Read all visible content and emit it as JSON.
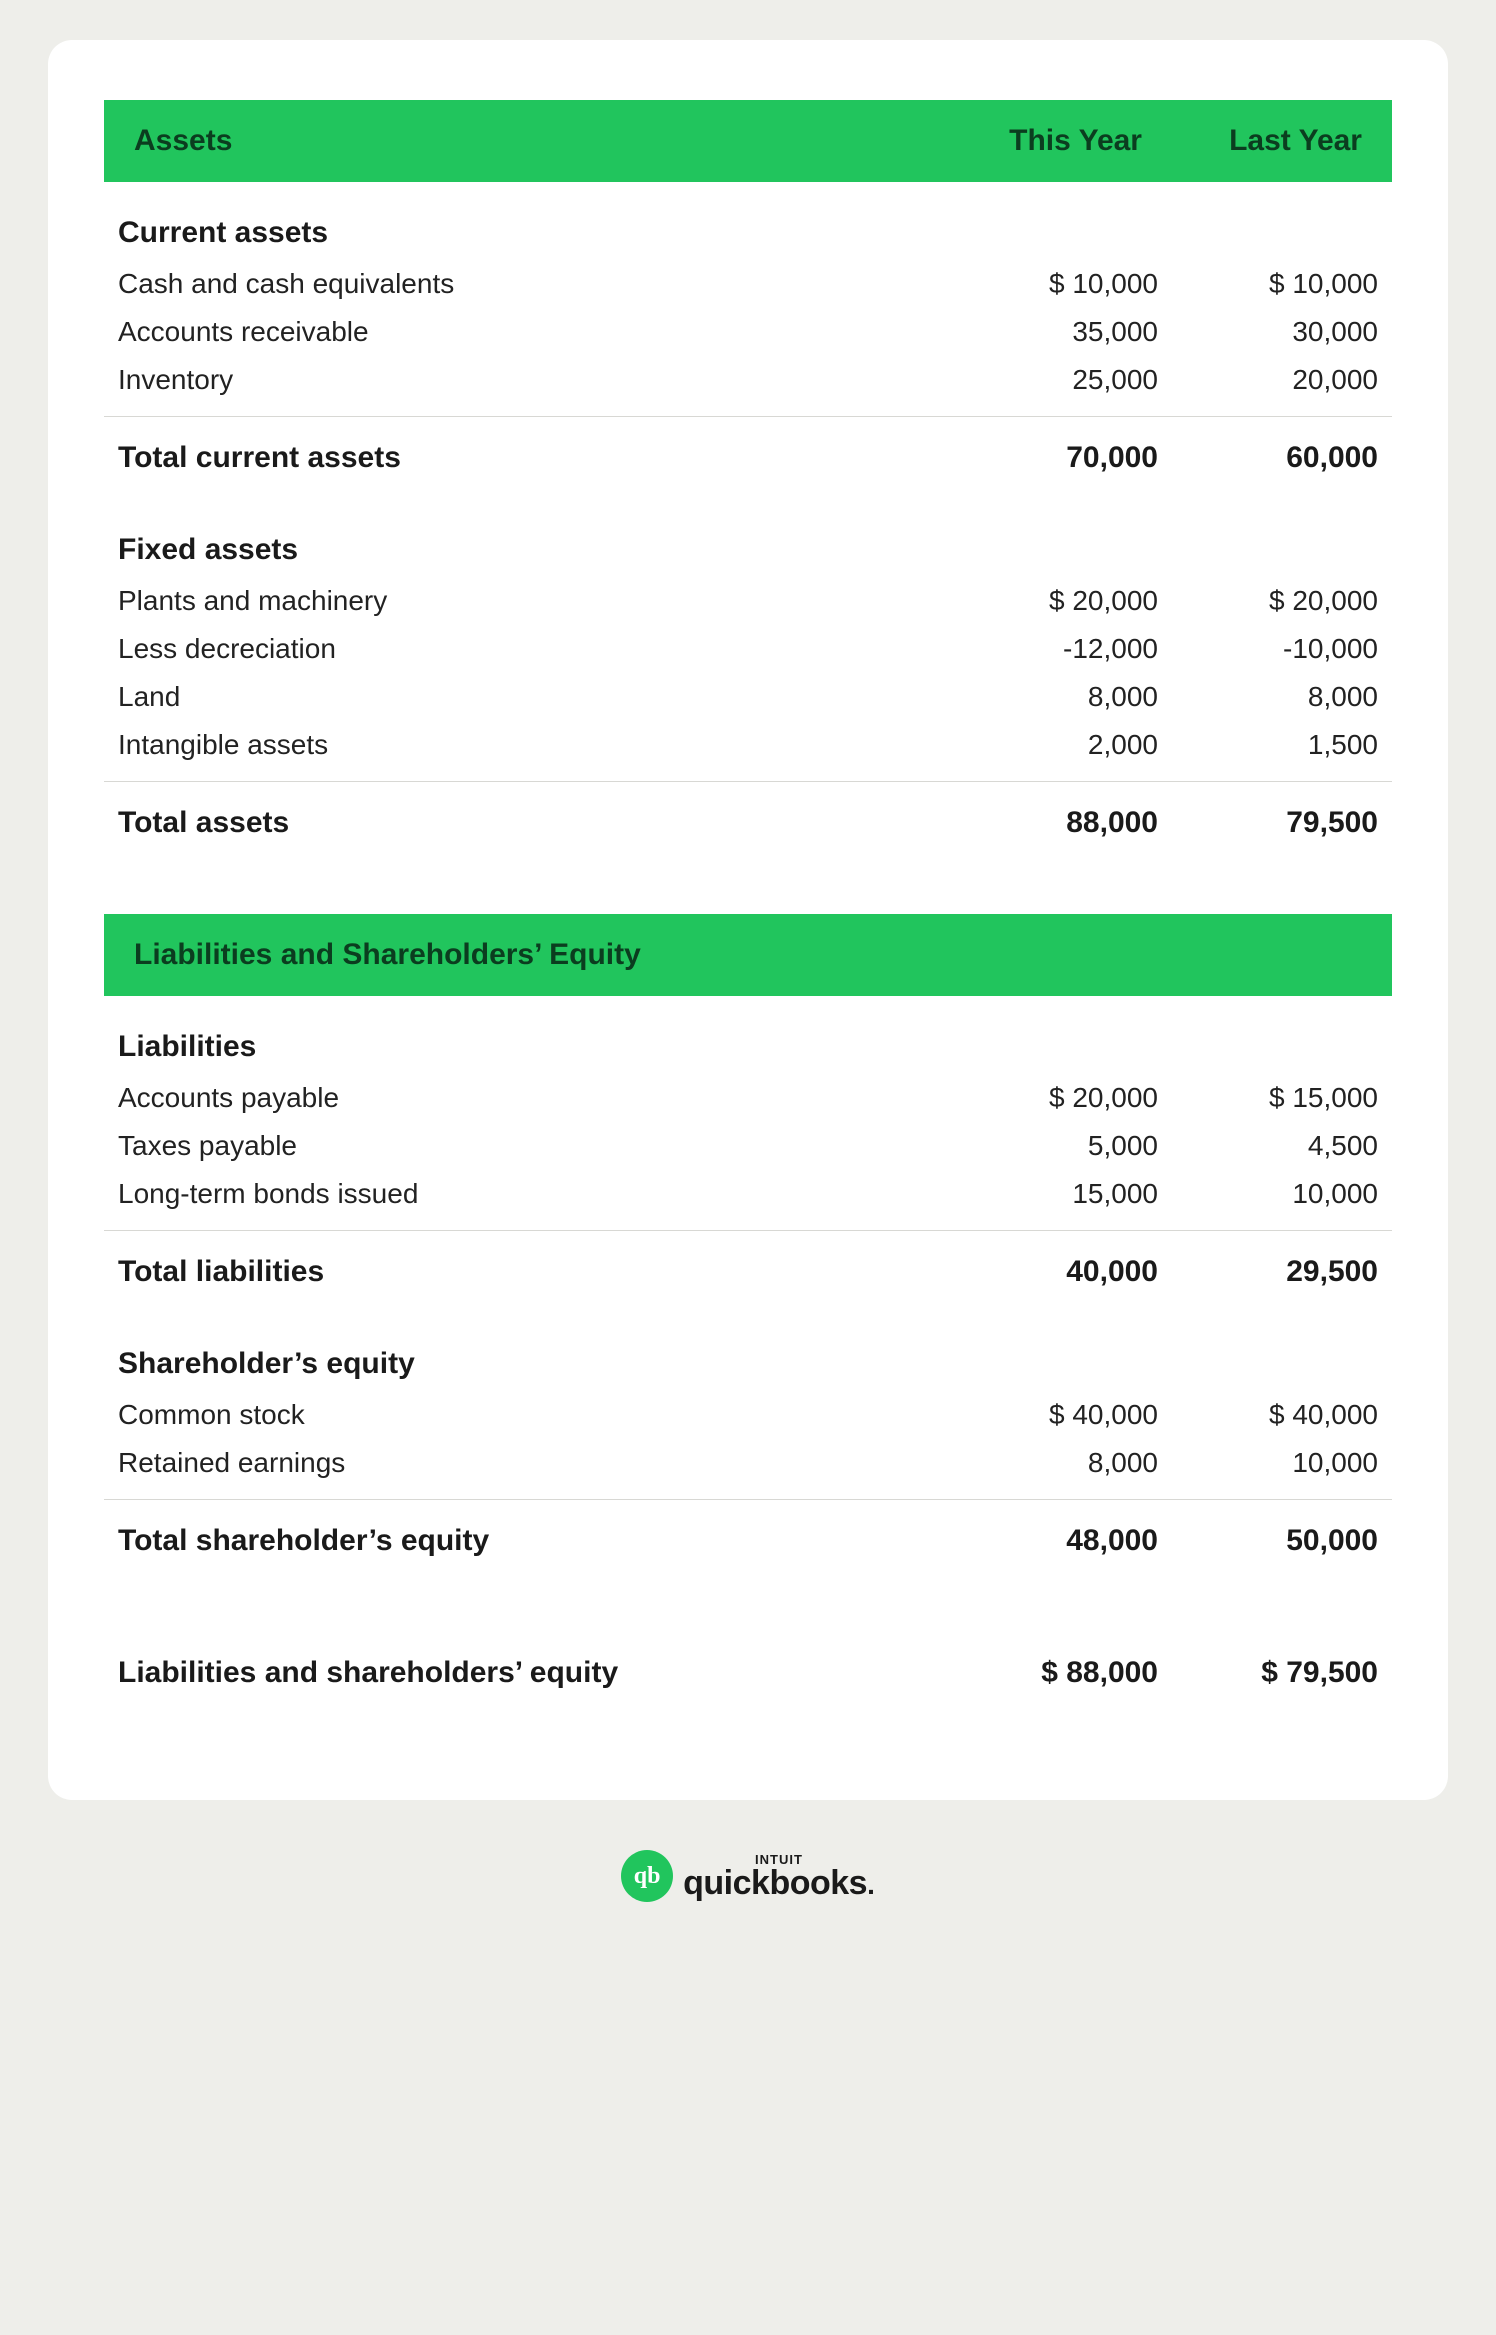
{
  "colors": {
    "page_bg": "#eeeeea",
    "card_bg": "#ffffff",
    "header_bg": "#21c55d",
    "header_text": "#0b3d1f",
    "text": "#1a1a1a",
    "divider": "#d8d8d4"
  },
  "columns": {
    "this_year": "This Year",
    "last_year": "Last Year"
  },
  "assets": {
    "title": "Assets",
    "current": {
      "heading": "Current assets",
      "rows": [
        {
          "label": "Cash and cash equivalents",
          "this": "$ 10,000",
          "last": "$ 10,000"
        },
        {
          "label": "Accounts receivable",
          "this": "35,000",
          "last": "30,000"
        },
        {
          "label": "Inventory",
          "this": "25,000",
          "last": "20,000"
        }
      ],
      "total": {
        "label": "Total current assets",
        "this": "70,000",
        "last": "60,000"
      }
    },
    "fixed": {
      "heading": "Fixed assets",
      "rows": [
        {
          "label": "Plants and machinery",
          "this": "$ 20,000",
          "last": "$ 20,000"
        },
        {
          "label": "Less decreciation",
          "this": "-12,000",
          "last": "-10,000"
        },
        {
          "label": "Land",
          "this": "8,000",
          "last": "8,000"
        },
        {
          "label": "Intangible assets",
          "this": "2,000",
          "last": "1,500"
        }
      ]
    },
    "total": {
      "label": "Total assets",
      "this": "88,000",
      "last": "79,500"
    }
  },
  "liab_equity": {
    "title": "Liabilities and Shareholders’ Equity",
    "liabilities": {
      "heading": "Liabilities",
      "rows": [
        {
          "label": "Accounts payable",
          "this": "$ 20,000",
          "last": "$ 15,000"
        },
        {
          "label": "Taxes payable",
          "this": "5,000",
          "last": "4,500"
        },
        {
          "label": "Long-term bonds issued",
          "this": "15,000",
          "last": "10,000"
        }
      ],
      "total": {
        "label": "Total liabilities",
        "this": "40,000",
        "last": "29,500"
      }
    },
    "equity": {
      "heading": "Shareholder’s equity",
      "rows": [
        {
          "label": "Common stock",
          "this": "$ 40,000",
          "last": "$ 40,000"
        },
        {
          "label": "Retained earnings",
          "this": "8,000",
          "last": "10,000"
        }
      ],
      "total": {
        "label": "Total shareholder’s equity",
        "this": "48,000",
        "last": "50,000"
      }
    },
    "grand_total": {
      "label": "Liabilities and shareholders’ equity",
      "this": "$ 88,000",
      "last": "$ 79,500"
    }
  },
  "branding": {
    "intuit": "INTUIT",
    "product": "quickbooks",
    "badge": "qb"
  }
}
